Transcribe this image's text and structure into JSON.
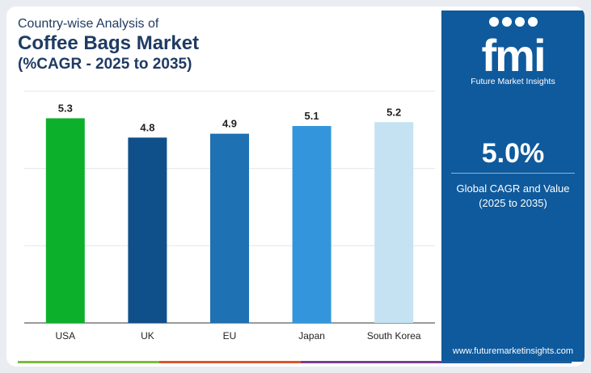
{
  "header": {
    "subtitle": "Country-wise Analysis of",
    "title": "Coffee Bags Market",
    "title_line2": "(%CAGR - 2025 to 2035)"
  },
  "chart_data": {
    "type": "bar",
    "categories": [
      "USA",
      "UK",
      "EU",
      "Japan",
      "South Korea"
    ],
    "values": [
      5.3,
      4.8,
      4.9,
      5.1,
      5.2
    ],
    "data_labels": [
      "5.3",
      "4.8",
      "4.9",
      "5.1",
      "5.2"
    ],
    "colors": [
      "#0db02b",
      "#0f508a",
      "#1e71b2",
      "#3396dc",
      "#c4e2f2"
    ],
    "ylim": [
      0,
      6
    ],
    "grid": true,
    "legend": "none"
  },
  "side_panel": {
    "logo": "fmi",
    "brand": "Future Market Insights",
    "value": "5.0%",
    "caption_line1": "Global CAGR and Value",
    "caption_line2": "(2025 to 2035)",
    "website": "www.futuremarketinsights.com",
    "background_color": "#0f5a9c"
  },
  "accent_colors": [
    "#7dba3a",
    "#d9562b",
    "#7b3a8f",
    "#1f5d9e"
  ]
}
